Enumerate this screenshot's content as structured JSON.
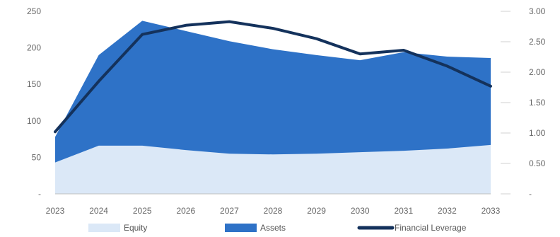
{
  "chart_data": {
    "type": "area",
    "categories": [
      "2023",
      "2024",
      "2025",
      "2026",
      "2027",
      "2028",
      "2029",
      "2030",
      "2031",
      "2032",
      "2033"
    ],
    "series": [
      {
        "name": "Equity",
        "kind": "area",
        "axis": "left",
        "color": "#dbe8f7",
        "values": [
          43,
          66,
          66,
          60,
          55,
          54,
          55,
          57,
          59,
          62,
          67
        ]
      },
      {
        "name": "Assets",
        "kind": "area",
        "axis": "left",
        "color": "#2e72c7",
        "values": [
          78,
          190,
          237,
          223,
          209,
          198,
          190,
          183,
          194,
          188,
          186
        ]
      },
      {
        "name": "Financial Leverage",
        "kind": "line",
        "axis": "right",
        "color": "#14325c",
        "values": [
          1.02,
          1.85,
          2.62,
          2.77,
          2.83,
          2.72,
          2.55,
          2.3,
          2.36,
          2.1,
          1.77
        ]
      }
    ],
    "y_left": {
      "min": 0,
      "max": 250,
      "ticks": [
        0,
        50,
        100,
        150,
        200,
        250
      ],
      "tick_labels": [
        "-",
        "50",
        "100",
        "150",
        "200",
        "250"
      ]
    },
    "y_right": {
      "min": 0,
      "max": 3,
      "ticks": [
        0,
        0.5,
        1,
        1.5,
        2,
        2.5,
        3
      ],
      "tick_labels": [
        "-",
        "0.50",
        "1.00",
        "1.50",
        "2.00",
        "2.50",
        "3.00"
      ]
    },
    "title": "",
    "xlabel": "",
    "ylabel": "",
    "grid": false,
    "legend_position": "bottom"
  }
}
